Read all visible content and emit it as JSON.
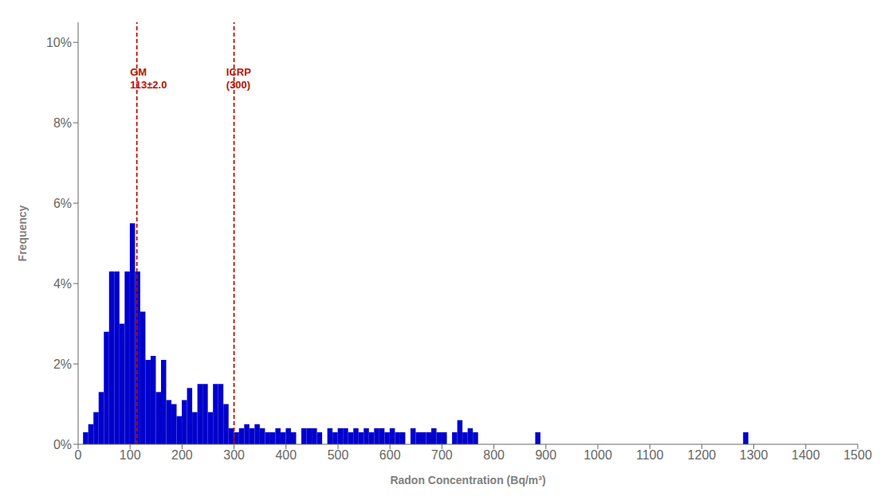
{
  "chart_data": {
    "type": "bar",
    "xlabel": "Radon Concentration (Bq/m³)",
    "ylabel": "Frequency",
    "x": [
      10,
      20,
      30,
      40,
      50,
      60,
      70,
      80,
      90,
      100,
      110,
      120,
      130,
      140,
      150,
      160,
      170,
      180,
      190,
      200,
      210,
      220,
      230,
      240,
      250,
      260,
      270,
      280,
      290,
      300,
      310,
      320,
      330,
      340,
      350,
      360,
      370,
      380,
      390,
      400,
      410,
      430,
      440,
      450,
      460,
      480,
      490,
      500,
      510,
      520,
      530,
      540,
      550,
      560,
      570,
      580,
      590,
      600,
      610,
      620,
      640,
      650,
      660,
      670,
      680,
      690,
      700,
      720,
      730,
      740,
      750,
      760,
      880,
      1280
    ],
    "values": [
      0.003,
      0.005,
      0.008,
      0.013,
      0.028,
      0.043,
      0.043,
      0.03,
      0.043,
      0.055,
      0.043,
      0.033,
      0.021,
      0.022,
      0.013,
      0.021,
      0.011,
      0.01,
      0.007,
      0.011,
      0.014,
      0.008,
      0.015,
      0.015,
      0.008,
      0.015,
      0.015,
      0.01,
      0.004,
      0.003,
      0.004,
      0.005,
      0.004,
      0.005,
      0.004,
      0.003,
      0.003,
      0.004,
      0.003,
      0.004,
      0.003,
      0.004,
      0.004,
      0.004,
      0.003,
      0.004,
      0.003,
      0.004,
      0.004,
      0.003,
      0.004,
      0.003,
      0.004,
      0.003,
      0.004,
      0.004,
      0.003,
      0.004,
      0.003,
      0.003,
      0.004,
      0.003,
      0.003,
      0.003,
      0.004,
      0.003,
      0.003,
      0.003,
      0.006,
      0.003,
      0.004,
      0.003,
      0.003,
      0.003
    ],
    "bin_width": 10,
    "color": "#0000CC",
    "xlim": [
      0,
      1500
    ],
    "ylim": [
      0,
      0.105
    ],
    "xticks": [
      0,
      100,
      200,
      300,
      400,
      500,
      600,
      700,
      800,
      900,
      1000,
      1100,
      1200,
      1300,
      1400,
      1500
    ],
    "yticks": [
      {
        "value": 0.0,
        "label": "0%"
      },
      {
        "value": 0.02,
        "label": "2%"
      },
      {
        "value": 0.04,
        "label": "4%"
      },
      {
        "value": 0.06,
        "label": "6%"
      },
      {
        "value": 0.08,
        "label": "8%"
      },
      {
        "value": 0.1,
        "label": "10%"
      }
    ],
    "grid": false,
    "vlines": [
      {
        "x": 113,
        "color": "#bb1100",
        "line_style": "dashed"
      },
      {
        "x": 300,
        "color": "#bb1100",
        "line_style": "dashed"
      }
    ],
    "annotations": [
      {
        "text": "GM\n113±2.0",
        "x": 100,
        "y": 0.088,
        "color": "#bb1100"
      },
      {
        "text": "ICRP\n(300)",
        "x": 285,
        "y": 0.088,
        "color": "#bb1100"
      }
    ]
  }
}
